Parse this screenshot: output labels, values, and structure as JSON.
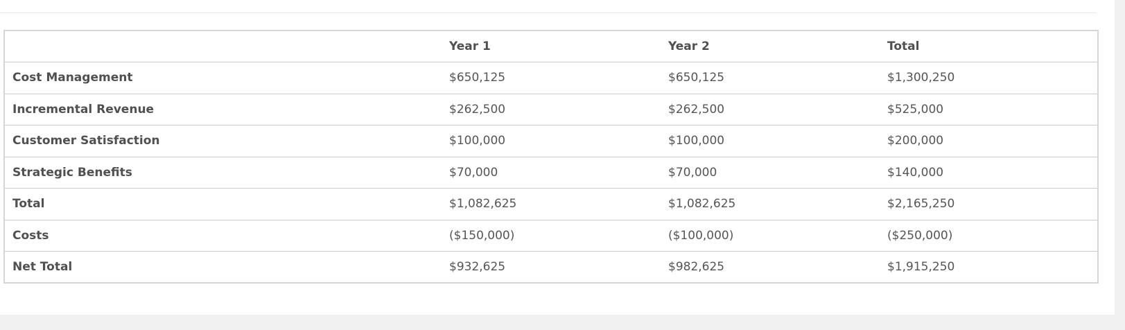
{
  "table": {
    "columns": [
      "",
      "Year 1",
      "Year 2",
      "Total"
    ],
    "rows": [
      {
        "label": "Cost Management",
        "values": [
          "$650,125",
          "$650,125",
          "$1,300,250"
        ]
      },
      {
        "label": "Incremental Revenue",
        "values": [
          "$262,500",
          "$262,500",
          "$525,000"
        ]
      },
      {
        "label": "Customer Satisfaction",
        "values": [
          "$100,000",
          "$100,000",
          "$200,000"
        ]
      },
      {
        "label": "Strategic Benefits",
        "values": [
          "$70,000",
          "$70,000",
          "$140,000"
        ]
      },
      {
        "label": "Total",
        "values": [
          "$1,082,625",
          "$1,082,625",
          "$2,165,250"
        ]
      },
      {
        "label": "Costs",
        "values": [
          "($150,000)",
          "($100,000)",
          "($250,000)"
        ]
      },
      {
        "label": "Net Total",
        "values": [
          "$932,625",
          "$982,625",
          "$1,915,250"
        ]
      }
    ]
  }
}
